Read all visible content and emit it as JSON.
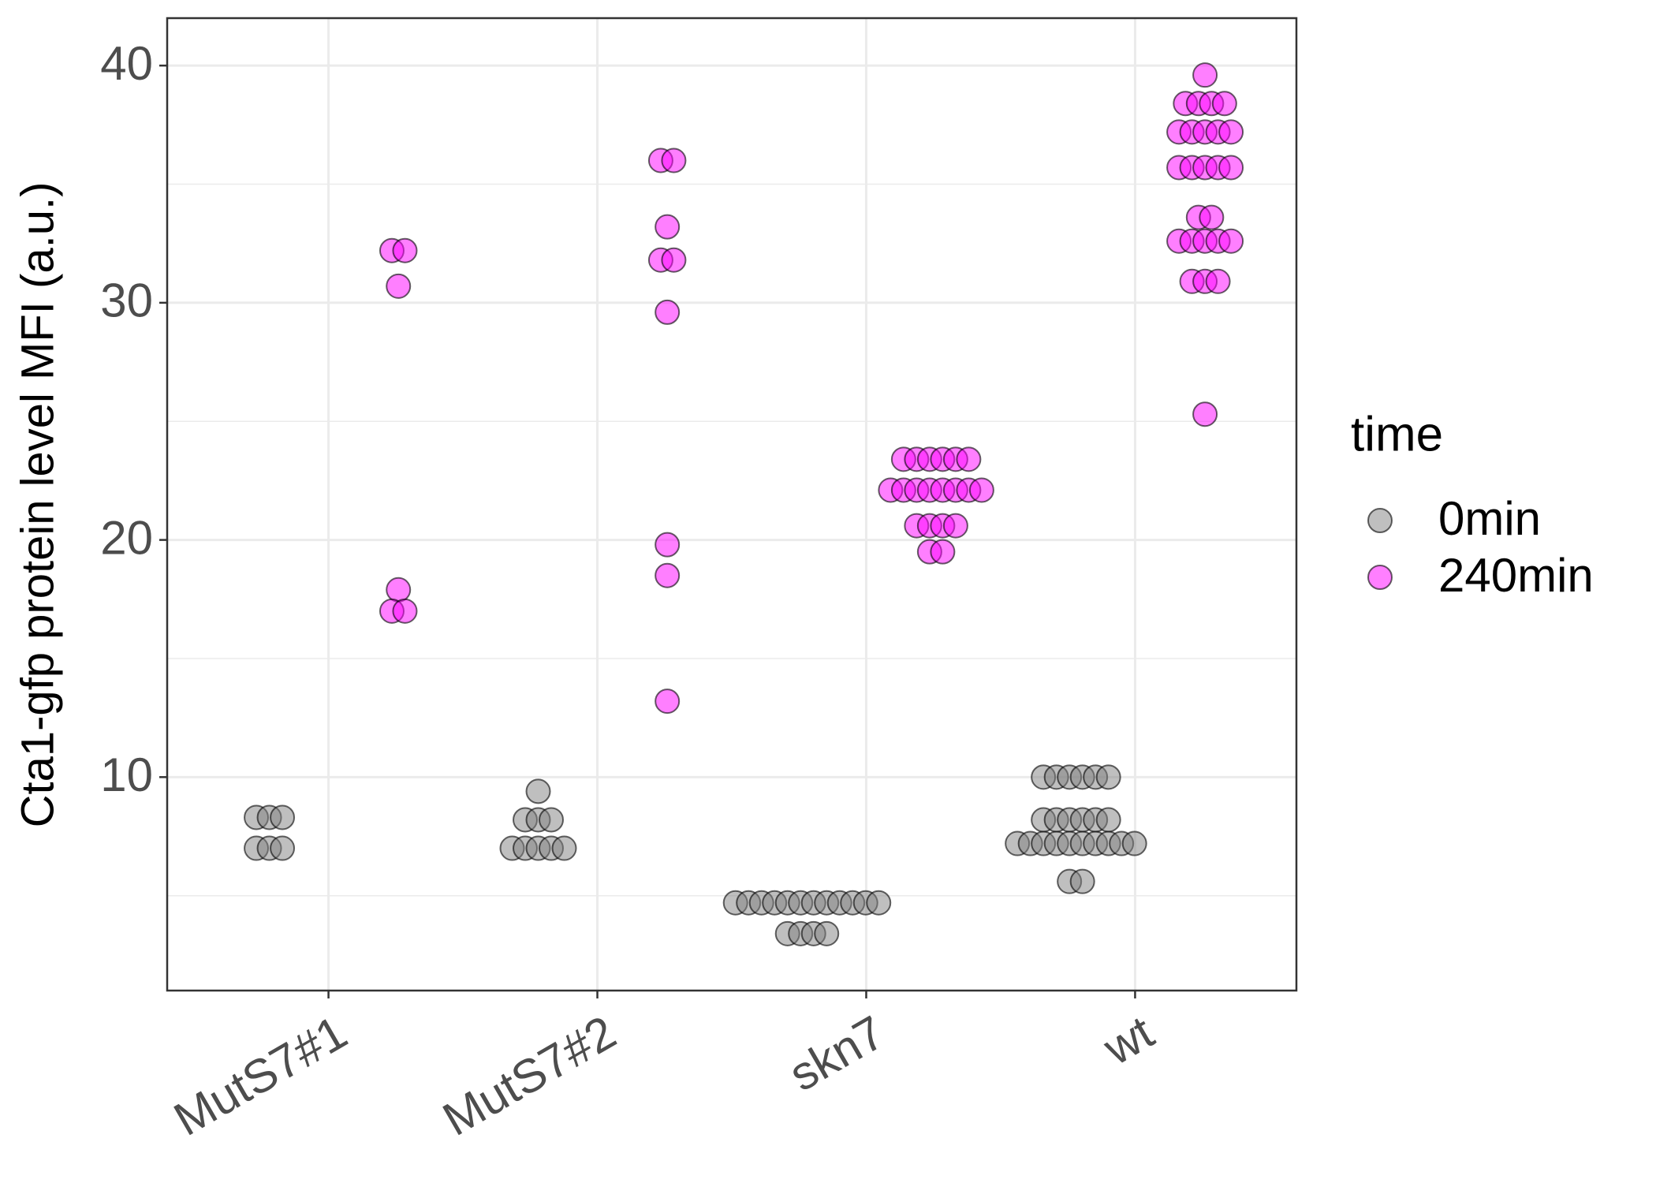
{
  "chart_data": {
    "type": "dotplot",
    "y_label": "Cta1-gfp protein level MFI (a.u.)",
    "categories": [
      "MutS7#1",
      "MutS7#2",
      "skn7",
      "wt"
    ],
    "legend_title": "time",
    "series": [
      {
        "name": "0min",
        "color": "#808080",
        "values": [
          [
            8.3,
            8.3,
            8.3,
            7.0,
            7.0,
            7.0
          ],
          [
            9.4,
            8.2,
            8.2,
            8.2,
            7.0,
            7.0,
            7.0,
            7.0,
            7.0
          ],
          [
            4.7,
            4.7,
            4.7,
            4.7,
            4.7,
            4.7,
            4.7,
            4.7,
            4.7,
            4.7,
            4.7,
            4.7,
            3.4,
            3.4,
            3.4,
            3.4
          ],
          [
            10.0,
            10.0,
            10.0,
            10.0,
            10.0,
            10.0,
            8.2,
            8.2,
            8.2,
            8.2,
            8.2,
            8.2,
            7.2,
            7.2,
            7.2,
            7.2,
            7.2,
            7.2,
            7.2,
            7.2,
            7.2,
            7.2,
            5.6,
            5.6
          ]
        ]
      },
      {
        "name": "240min",
        "color": "#ff00ff",
        "values": [
          [
            32.2,
            32.2,
            30.7,
            17.9,
            17.0,
            17.0
          ],
          [
            36.0,
            36.0,
            33.2,
            31.8,
            31.8,
            29.6,
            19.8,
            18.5,
            13.2
          ],
          [
            23.4,
            23.4,
            23.4,
            23.4,
            23.4,
            23.4,
            22.1,
            22.1,
            22.1,
            22.1,
            22.1,
            22.1,
            22.1,
            22.1,
            20.6,
            20.6,
            20.6,
            20.6,
            19.5,
            19.5
          ],
          [
            39.6,
            38.4,
            38.4,
            38.4,
            38.4,
            37.2,
            37.2,
            37.2,
            37.2,
            37.2,
            35.7,
            35.7,
            35.7,
            35.7,
            35.7,
            33.6,
            33.6,
            32.6,
            32.6,
            32.6,
            32.6,
            32.6,
            30.9,
            30.9,
            30.9,
            25.3
          ]
        ]
      }
    ],
    "ylim": [
      1.0,
      42.0
    ],
    "yticks": [
      10,
      20,
      30,
      40
    ],
    "y_minor_ticks": [
      5,
      15,
      25,
      35
    ],
    "grid": true,
    "legend_position": "right"
  }
}
